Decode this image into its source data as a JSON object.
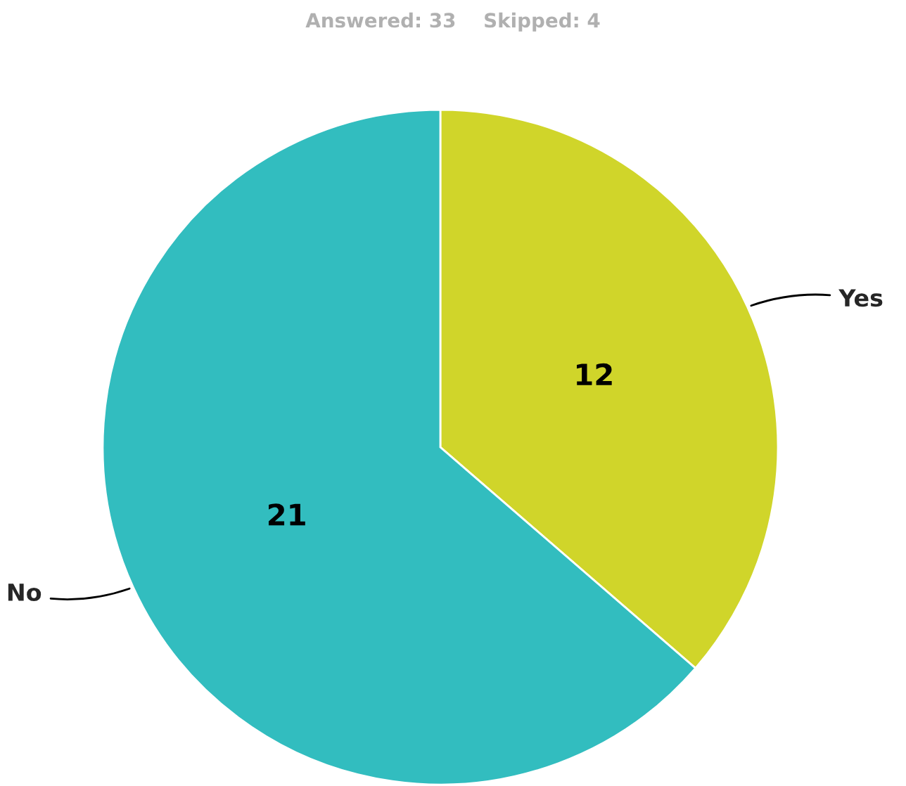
{
  "chart_data": {
    "type": "pie",
    "title": "Answered: 33    Skipped: 4",
    "categories": [
      "Yes",
      "No"
    ],
    "values": [
      12,
      21
    ],
    "colors": [
      "#d0d52a",
      "#32bdbf"
    ],
    "data_labels": true
  }
}
